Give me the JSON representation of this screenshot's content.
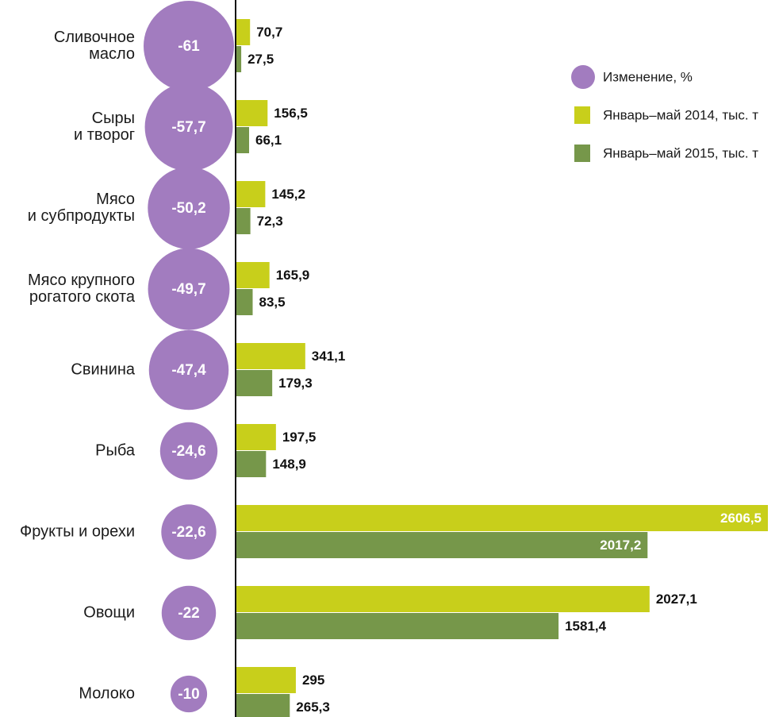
{
  "chart_data": {
    "type": "bar",
    "orientation": "horizontal",
    "categories": [
      "Сливочное\nмасло",
      "Сыры\nи творог",
      "Мясо\nи субпродукты",
      "Мясо крупного\nрогатого скота",
      "Свинина",
      "Рыба",
      "Фрукты и орехи",
      "Овощи",
      "Молоко"
    ],
    "series": [
      {
        "name": "Изменение, %",
        "color": "#a27cbf",
        "mark": "bubble",
        "values": [
          -61,
          -57.7,
          -50.2,
          -49.7,
          -47.4,
          -24.6,
          -22.6,
          -22,
          -10
        ],
        "value_labels": [
          "-61",
          "-57,7",
          "-50,2",
          "-49,7",
          "-47,4",
          "-24,6",
          "-22,6",
          "-22",
          "-10"
        ]
      },
      {
        "name": "Январь–май 2014, тыс. т",
        "color": "#c8cf1b",
        "mark": "bar",
        "values": [
          70.7,
          156.5,
          145.2,
          165.9,
          341.1,
          197.5,
          2606.5,
          2027.1,
          295
        ],
        "value_labels": [
          "70,7",
          "156,5",
          "145,2",
          "165,9",
          "341,1",
          "197,5",
          "2606,5",
          "2027,1",
          "295"
        ]
      },
      {
        "name": "Январь–май 2015, тыс. т",
        "color": "#76974a",
        "mark": "bar",
        "values": [
          27.5,
          66.1,
          72.3,
          83.5,
          179.3,
          148.9,
          2017.2,
          1581.4,
          265.3
        ],
        "value_labels": [
          "27,5",
          "66,1",
          "72,3",
          "83,5",
          "179,3",
          "148,9",
          "2017,2",
          "1581,4",
          "265,3"
        ]
      }
    ],
    "legend": "top-right"
  }
}
